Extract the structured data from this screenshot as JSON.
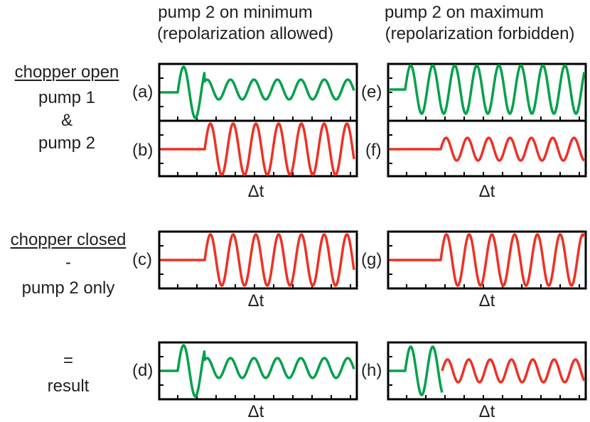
{
  "headers": {
    "left_line1": "pump 2 on minimum",
    "left_line2": "(repolarization allowed)",
    "right_line1": "pump 2 on maximum",
    "right_line2": "(repolarization forbidden)"
  },
  "rows": {
    "open": {
      "line1": "chopper open",
      "line2": "pump 1",
      "line3": "&",
      "line4": "pump 2"
    },
    "closed": {
      "line1": "chopper closed",
      "line2": "-",
      "line3": "pump 2 only"
    },
    "result": {
      "line1": "=",
      "line2": "result"
    }
  },
  "axis_label": "Δt",
  "colors": {
    "green": "#00a14b",
    "red": "#ee3124",
    "frame": "#000000",
    "text": "#231f20"
  },
  "panels": [
    {
      "id": "a",
      "label": "(a)",
      "segments": [
        {
          "color": "green",
          "kind": "step_large_then_small"
        }
      ]
    },
    {
      "id": "b",
      "label": "(b)",
      "segments": [
        {
          "color": "red",
          "kind": "step_then_large_late"
        }
      ]
    },
    {
      "id": "c",
      "label": "(c)",
      "segments": [
        {
          "color": "red",
          "kind": "step_then_large_late"
        }
      ]
    },
    {
      "id": "d",
      "label": "(d)",
      "segments": [
        {
          "color": "green",
          "kind": "step_large_then_small"
        }
      ]
    },
    {
      "id": "e",
      "label": "(e)",
      "segments": [
        {
          "color": "green",
          "kind": "step_then_large_early"
        }
      ]
    },
    {
      "id": "f",
      "label": "(f)",
      "segments": [
        {
          "color": "red",
          "kind": "step_then_small_late"
        }
      ]
    },
    {
      "id": "g",
      "label": "(g)",
      "segments": [
        {
          "color": "red",
          "kind": "step_then_large_late"
        }
      ]
    },
    {
      "id": "h",
      "label": "(h)",
      "segments": [
        {
          "color": "green",
          "kind": "step_large_cut"
        },
        {
          "color": "red",
          "kind": "small_from_cut"
        }
      ]
    }
  ]
}
